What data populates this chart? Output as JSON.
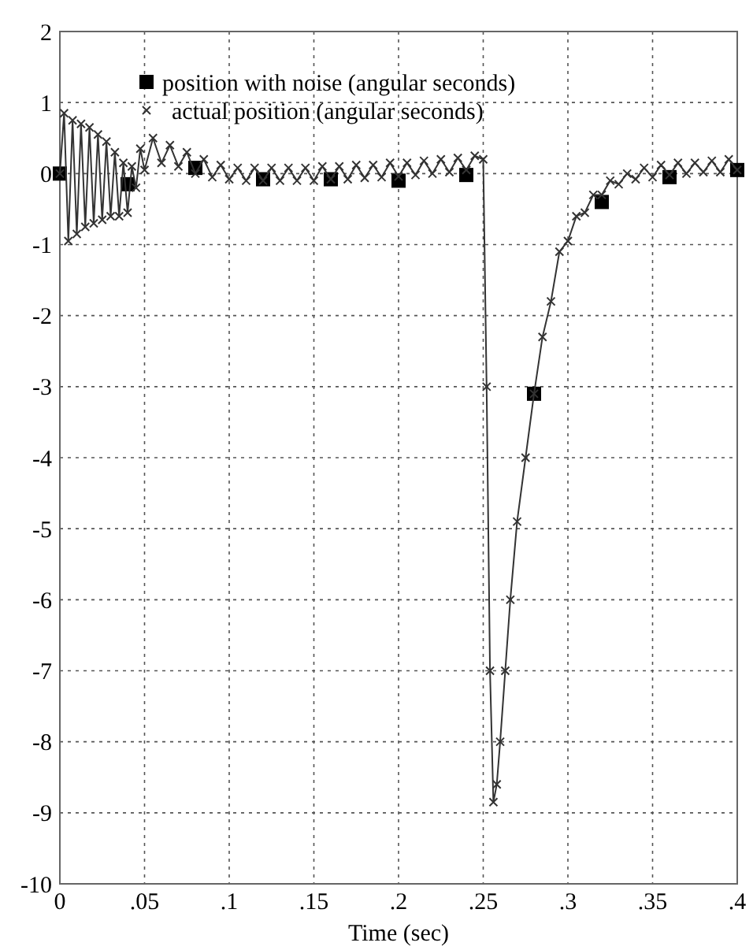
{
  "chart_data": {
    "type": "line",
    "xlabel": "Time (sec)",
    "xlim": [
      0,
      0.4
    ],
    "ylim": [
      -10,
      2
    ],
    "xticks": [
      {
        "value": 0,
        "label": "0"
      },
      {
        "value": 0.05,
        "label": ".05"
      },
      {
        "value": 0.1,
        "label": ".1"
      },
      {
        "value": 0.15,
        "label": ".15"
      },
      {
        "value": 0.2,
        "label": ".2"
      },
      {
        "value": 0.25,
        "label": ".25"
      },
      {
        "value": 0.3,
        "label": ".3"
      },
      {
        "value": 0.35,
        "label": ".35"
      },
      {
        "value": 0.4,
        "label": ".4"
      }
    ],
    "yticks": [
      -10,
      -9,
      -8,
      -7,
      -6,
      -5,
      -4,
      -3,
      -2,
      -1,
      0,
      1,
      2
    ],
    "grid": true,
    "legend": "top",
    "series": [
      {
        "name": "position with noise (angular seconds)",
        "type": "scatter",
        "marker": "square",
        "color": "#000000",
        "x": [
          0,
          0.04,
          0.08,
          0.12,
          0.16,
          0.2,
          0.24,
          0.28,
          0.32,
          0.36,
          0.4
        ],
        "values": [
          0,
          -0.15,
          0.08,
          -0.08,
          -0.08,
          -0.1,
          -0.02,
          -3.1,
          -0.4,
          -0.05,
          0.05
        ]
      },
      {
        "name": "actual position (angular seconds)",
        "marker": "cross",
        "color": "#333333",
        "x": [
          0,
          0.0025,
          0.005,
          0.0075,
          0.01,
          0.0125,
          0.015,
          0.0175,
          0.02,
          0.0225,
          0.025,
          0.0275,
          0.03,
          0.0325,
          0.035,
          0.0375,
          0.04,
          0.0425,
          0.045,
          0.0475,
          0.05,
          0.055,
          0.06,
          0.065,
          0.07,
          0.075,
          0.08,
          0.085,
          0.09,
          0.095,
          0.1,
          0.105,
          0.11,
          0.115,
          0.12,
          0.125,
          0.13,
          0.135,
          0.14,
          0.145,
          0.15,
          0.155,
          0.16,
          0.165,
          0.17,
          0.175,
          0.18,
          0.185,
          0.19,
          0.195,
          0.2,
          0.205,
          0.21,
          0.215,
          0.22,
          0.225,
          0.23,
          0.235,
          0.24,
          0.245,
          0.25,
          0.252,
          0.254,
          0.256,
          0.258,
          0.26,
          0.263,
          0.266,
          0.27,
          0.275,
          0.28,
          0.285,
          0.29,
          0.295,
          0.3,
          0.305,
          0.31,
          0.315,
          0.32,
          0.325,
          0.33,
          0.335,
          0.34,
          0.345,
          0.35,
          0.355,
          0.36,
          0.365,
          0.37,
          0.375,
          0.38,
          0.385,
          0.39,
          0.395,
          0.4
        ],
        "values": [
          0,
          0.85,
          -0.95,
          0.75,
          -0.85,
          0.7,
          -0.75,
          0.65,
          -0.7,
          0.55,
          -0.65,
          0.45,
          -0.6,
          0.3,
          -0.6,
          0.15,
          -0.55,
          0.1,
          -0.2,
          0.35,
          0.05,
          0.5,
          0.15,
          0.4,
          0.1,
          0.3,
          0,
          0.2,
          -0.05,
          0.12,
          -0.08,
          0.08,
          -0.1,
          0.08,
          -0.1,
          0.08,
          -0.1,
          0.08,
          -0.1,
          0.08,
          -0.1,
          0.1,
          -0.08,
          0.1,
          -0.08,
          0.12,
          -0.06,
          0.12,
          -0.05,
          0.15,
          -0.04,
          0.15,
          -0.02,
          0.18,
          0,
          0.2,
          0.02,
          0.22,
          0.05,
          0.25,
          0.2,
          -3,
          -7,
          -8.85,
          -8.6,
          -8,
          -7,
          -6,
          -4.9,
          -4,
          -3.1,
          -2.3,
          -1.8,
          -1.1,
          -0.95,
          -0.6,
          -0.55,
          -0.3,
          -0.3,
          -0.1,
          -0.15,
          0,
          -0.08,
          0.08,
          -0.05,
          0.12,
          -0.02,
          0.15,
          0,
          0.15,
          0.02,
          0.18,
          0.02,
          0.2,
          0.05
        ]
      }
    ]
  }
}
